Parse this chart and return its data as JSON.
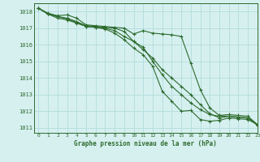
{
  "title": "Graphe pression niveau de la mer (hPa)",
  "background_color": "#d6f0f0",
  "grid_color": "#b8dede",
  "line_color": "#2d6b2d",
  "xlim": [
    -0.5,
    23
  ],
  "ylim": [
    1010.7,
    1018.5
  ],
  "yticks": [
    1011,
    1012,
    1013,
    1014,
    1015,
    1016,
    1017,
    1018
  ],
  "xticks": [
    0,
    1,
    2,
    3,
    4,
    5,
    6,
    7,
    8,
    9,
    10,
    11,
    12,
    13,
    14,
    15,
    16,
    17,
    18,
    19,
    20,
    21,
    22,
    23
  ],
  "series": [
    [
      1018.2,
      1017.9,
      1017.75,
      1017.8,
      1017.6,
      1017.2,
      1017.15,
      1017.1,
      1017.05,
      1017.0,
      1016.65,
      1016.85,
      1016.7,
      1016.65,
      1016.6,
      1016.5,
      1014.9,
      1013.3,
      1012.2,
      1011.75,
      1011.8,
      1011.75,
      1011.7,
      1011.2
    ],
    [
      1018.2,
      1017.85,
      1017.7,
      1017.6,
      1017.4,
      1017.15,
      1017.1,
      1017.05,
      1017.0,
      1016.8,
      1016.2,
      1015.7,
      1015.2,
      1014.5,
      1014.0,
      1013.5,
      1013.0,
      1012.4,
      1011.85,
      1011.6,
      1011.7,
      1011.65,
      1011.6,
      1011.2
    ],
    [
      1018.2,
      1017.85,
      1017.7,
      1017.55,
      1017.35,
      1017.1,
      1017.05,
      1017.0,
      1016.85,
      1016.5,
      1016.2,
      1015.85,
      1015.0,
      1014.2,
      1013.5,
      1013.0,
      1012.5,
      1012.1,
      1011.8,
      1011.7,
      1011.7,
      1011.65,
      1011.6,
      1011.15
    ],
    [
      1018.2,
      1017.85,
      1017.6,
      1017.5,
      1017.3,
      1017.1,
      1017.05,
      1016.95,
      1016.7,
      1016.3,
      1015.8,
      1015.4,
      1014.7,
      1013.2,
      1012.6,
      1012.0,
      1012.05,
      1011.5,
      1011.4,
      1011.45,
      1011.6,
      1011.55,
      1011.5,
      1011.2
    ]
  ]
}
